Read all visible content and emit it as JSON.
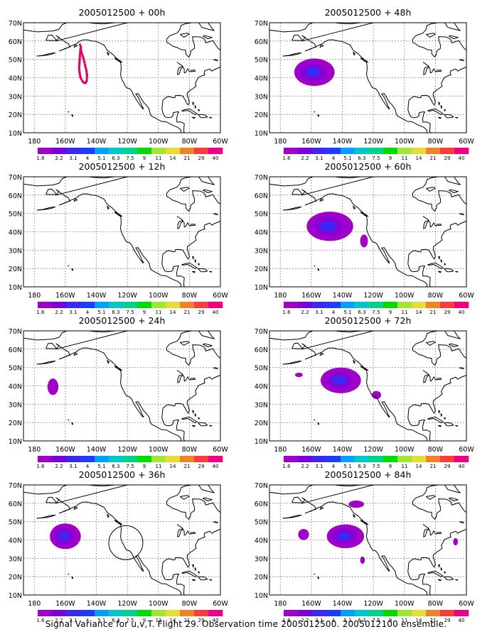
{
  "caption": "Signal Variance for u,v,T. Flight 29. Observation time 2005012500. 2005012100 ensemble.",
  "lat_labels": [
    "70N",
    "60N",
    "50N",
    "40N",
    "30N",
    "20N",
    "10N"
  ],
  "lon_labels": [
    "180",
    "160W",
    "140W",
    "120W",
    "100W",
    "80W",
    "60W"
  ],
  "legend": {
    "labels": [
      "1.6",
      "2.2",
      "3.1",
      "4",
      "5.1",
      "6.3",
      "7.5",
      "9",
      "11",
      "14",
      "21",
      "29",
      "40"
    ],
    "colors": [
      "#a000c8",
      "#7a00dc",
      "#3c28f0",
      "#1e3cff",
      "#00a0ff",
      "#00c8c8",
      "#00d28c",
      "#00dc00",
      "#a0e632",
      "#e6dc32",
      "#f08228",
      "#fa3c3c",
      "#f00082"
    ]
  },
  "colors": {
    "coast": "#000000",
    "grid": "#8c8c8c",
    "track": "#dc0064",
    "blob_outer": "#a000c8",
    "blob_mid": "#8a00d4",
    "blob_core": "#3c28f0"
  },
  "panels": [
    {
      "title": "2005012500 + 00h",
      "show_track": true,
      "show_circle": false,
      "blobs": []
    },
    {
      "title": "2005012500 + 48h",
      "show_track": false,
      "show_circle": false,
      "blobs": [
        {
          "lon": -158,
          "lat": 43,
          "rx": 13,
          "ry": 7.5,
          "level": 3
        }
      ]
    },
    {
      "title": "2005012500 + 12h",
      "show_track": false,
      "show_circle": false,
      "blobs": []
    },
    {
      "title": "2005012500 + 60h",
      "show_track": false,
      "show_circle": false,
      "blobs": [
        {
          "lon": -148,
          "lat": 43,
          "rx": 15,
          "ry": 8,
          "level": 3
        },
        {
          "lon": -126,
          "lat": 35,
          "rx": 2.5,
          "ry": 3.5,
          "level": 1
        }
      ]
    },
    {
      "title": "2005012500 + 24h",
      "show_track": false,
      "show_circle": false,
      "blobs": [
        {
          "lon": -168,
          "lat": 39.5,
          "rx": 3.5,
          "ry": 4.5,
          "level": 1
        }
      ]
    },
    {
      "title": "2005012500 + 72h",
      "show_track": false,
      "show_circle": false,
      "blobs": [
        {
          "lon": -141,
          "lat": 43,
          "rx": 13,
          "ry": 7,
          "level": 3
        },
        {
          "lon": -168,
          "lat": 46,
          "rx": 2.5,
          "ry": 1.2,
          "level": 1
        },
        {
          "lon": -118,
          "lat": 35,
          "rx": 3,
          "ry": 2.2,
          "level": 1
        }
      ]
    },
    {
      "title": "2005012500 + 36h",
      "show_track": false,
      "show_circle": true,
      "blobs": [
        {
          "lon": -160,
          "lat": 42,
          "rx": 10,
          "ry": 7,
          "level": 3
        }
      ]
    },
    {
      "title": "2005012500 + 84h",
      "show_track": false,
      "show_circle": false,
      "blobs": [
        {
          "lon": -138,
          "lat": 42,
          "rx": 12,
          "ry": 6.5,
          "level": 3
        },
        {
          "lon": -165,
          "lat": 43,
          "rx": 3.5,
          "ry": 3,
          "level": 1
        },
        {
          "lon": -131,
          "lat": 59.5,
          "rx": 5,
          "ry": 2,
          "level": 1
        },
        {
          "lon": -127,
          "lat": 29,
          "rx": 1.5,
          "ry": 2,
          "level": 1
        },
        {
          "lon": -67,
          "lat": 39,
          "rx": 1.5,
          "ry": 2,
          "level": 1
        }
      ]
    }
  ]
}
